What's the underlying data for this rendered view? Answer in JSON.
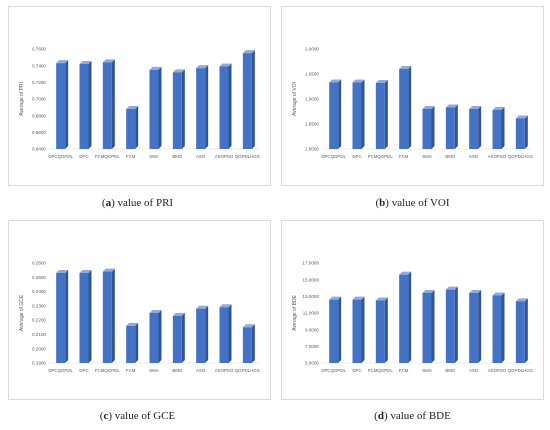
{
  "captions": [
    {
      "letter": "a",
      "text": "value of PRI"
    },
    {
      "letter": "b",
      "text": "value of VOI"
    },
    {
      "letter": "c",
      "text": "value of GCE"
    },
    {
      "letter": "d",
      "text": "value of BDE"
    }
  ],
  "colors": {
    "bar_front": "#4472c4",
    "bar_side": "#2f5597",
    "bar_top": "#8faadc",
    "grid": "#d9d9d9"
  },
  "chart_data": [
    {
      "type": "bar",
      "title": "",
      "ylabel": "Average of PRI",
      "categories": [
        "DPCQGPDL",
        "DPC",
        "FCMQGPDL",
        "FCM",
        "SMA",
        "BMO",
        "ASO",
        "ASOPSO",
        "QGPDLHGS"
      ],
      "values": [
        0.743,
        0.742,
        0.744,
        0.688,
        0.735,
        0.732,
        0.737,
        0.739,
        0.755
      ],
      "ylim": [
        0.64,
        0.76
      ],
      "yticks": [
        "0.6400",
        "0.6600",
        "0.6800",
        "0.7000",
        "0.7200",
        "0.7400",
        "0.7600"
      ],
      "grid": false
    },
    {
      "type": "bar",
      "title": "",
      "ylabel": "Average of VOI",
      "categories": [
        "DPCQGPDL",
        "DPC",
        "FCMQGPDL",
        "FCM",
        "SMA",
        "BMO",
        "ASO",
        "ASOPSO",
        "QGPDLHGS"
      ],
      "values": [
        1.933,
        1.933,
        1.932,
        1.96,
        1.88,
        1.883,
        1.88,
        1.878,
        1.861
      ],
      "ylim": [
        1.8,
        2.0
      ],
      "yticks": [
        "1.8000",
        "1.8500",
        "1.9000",
        "1.9500",
        "2.0000"
      ],
      "grid": false
    },
    {
      "type": "bar",
      "title": "",
      "ylabel": "Average of GCE",
      "categories": [
        "DPCQGPDL",
        "DPC",
        "FCMQGPDL",
        "FCM",
        "SMA",
        "BMO",
        "ASO",
        "ASOPSO",
        "QGPDLHGS"
      ],
      "values": [
        0.253,
        0.253,
        0.254,
        0.216,
        0.225,
        0.223,
        0.228,
        0.229,
        0.215
      ],
      "ylim": [
        0.19,
        0.26
      ],
      "yticks": [
        "0.1900",
        "0.2000",
        "0.2100",
        "0.2200",
        "0.2300",
        "0.2400",
        "0.2500",
        "0.2600"
      ],
      "grid": false
    },
    {
      "type": "bar",
      "title": "",
      "ylabel": "Average of BDE",
      "categories": [
        "DPCQGPDL",
        "DPC",
        "FCMQGPDL",
        "FCM",
        "SMA",
        "BMO",
        "ASO",
        "ASOPSO",
        "QGPDLHGS"
      ],
      "values": [
        12.6,
        12.6,
        12.5,
        15.6,
        13.4,
        13.8,
        13.4,
        13.1,
        12.4
      ],
      "ylim": [
        5.0,
        17.0
      ],
      "yticks": [
        "5.0000",
        "7.0000",
        "9.0000",
        "11.0000",
        "13.0000",
        "15.0000",
        "17.0000"
      ],
      "grid": false
    }
  ]
}
